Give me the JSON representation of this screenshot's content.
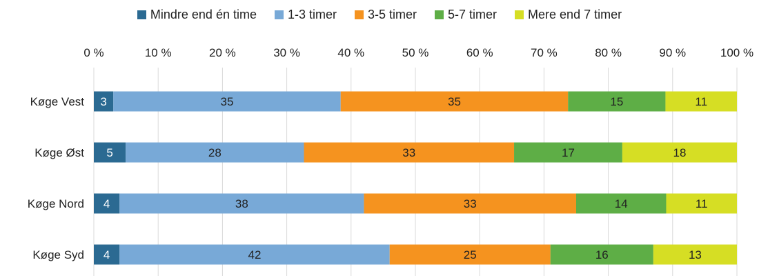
{
  "chart_data": {
    "type": "bar",
    "orientation": "horizontal",
    "stacked": true,
    "categories": [
      "Køge Vest",
      "Køge Øst",
      "Køge Nord",
      "Køge Syd"
    ],
    "series": [
      {
        "name": "Mindre end én time",
        "color": "#2b6a92",
        "label_color": "#ffffff",
        "values": [
          3,
          5,
          4,
          4
        ]
      },
      {
        "name": "1-3 timer",
        "color": "#78a9d7",
        "label_color": "#222222",
        "values": [
          35,
          28,
          38,
          42
        ]
      },
      {
        "name": "3-5 timer",
        "color": "#f5931f",
        "label_color": "#222222",
        "values": [
          35,
          33,
          33,
          25
        ]
      },
      {
        "name": "5-7 timer",
        "color": "#5eae46",
        "label_color": "#222222",
        "values": [
          15,
          17,
          14,
          16
        ]
      },
      {
        "name": "Mere end 7 timer",
        "color": "#d6de24",
        "label_color": "#222222",
        "values": [
          11,
          18,
          11,
          13
        ]
      }
    ],
    "xlim": [
      0,
      100
    ],
    "x_ticks": [
      "0 %",
      "10 %",
      "20 %",
      "30 %",
      "40 %",
      "50 %",
      "60 %",
      "70 %",
      "80 %",
      "90 %",
      "100 %"
    ],
    "x_axis_position": "top",
    "grid": true,
    "legend_position": "top"
  }
}
